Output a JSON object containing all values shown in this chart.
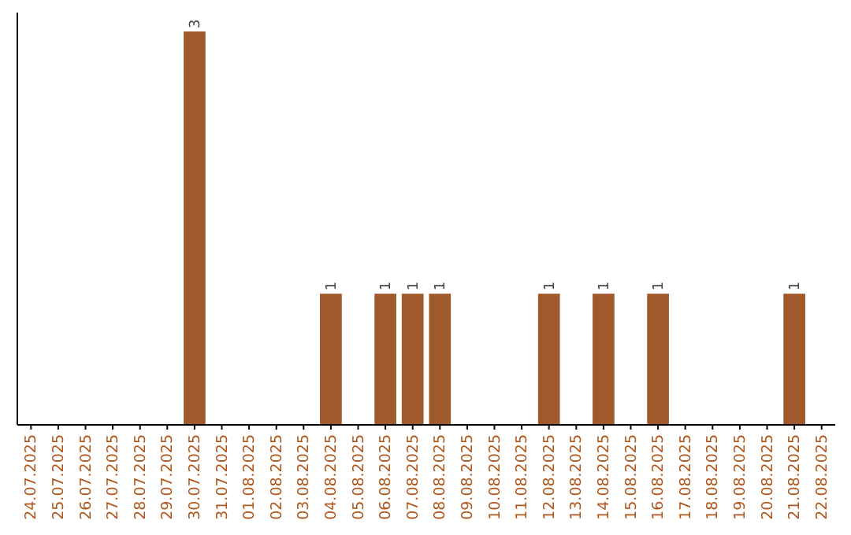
{
  "chart_data": {
    "type": "bar",
    "categories": [
      "24.07.2025",
      "25.07.2025",
      "26.07.2025",
      "27.07.2025",
      "28.07.2025",
      "29.07.2025",
      "30.07.2025",
      "31.07.2025",
      "01.08.2025",
      "02.08.2025",
      "03.08.2025",
      "04.08.2025",
      "05.08.2025",
      "06.08.2025",
      "07.08.2025",
      "08.08.2025",
      "09.08.2025",
      "10.08.2025",
      "11.08.2025",
      "12.08.2025",
      "13.08.2025",
      "14.08.2025",
      "15.08.2025",
      "16.08.2025",
      "17.08.2025",
      "18.08.2025",
      "19.08.2025",
      "20.08.2025",
      "21.08.2025",
      "22.08.2025"
    ],
    "values": [
      0,
      0,
      0,
      0,
      0,
      0,
      3,
      0,
      0,
      0,
      0,
      1,
      0,
      1,
      1,
      1,
      0,
      0,
      0,
      1,
      0,
      1,
      0,
      1,
      0,
      0,
      0,
      0,
      1,
      0
    ],
    "value_labels": [
      null,
      null,
      null,
      null,
      null,
      null,
      "3",
      null,
      null,
      null,
      null,
      "1",
      null,
      "1",
      "1",
      "1",
      null,
      null,
      null,
      "1",
      null,
      "1",
      null,
      "1",
      null,
      null,
      null,
      null,
      "1",
      null
    ],
    "color": "#a0592a"
  }
}
